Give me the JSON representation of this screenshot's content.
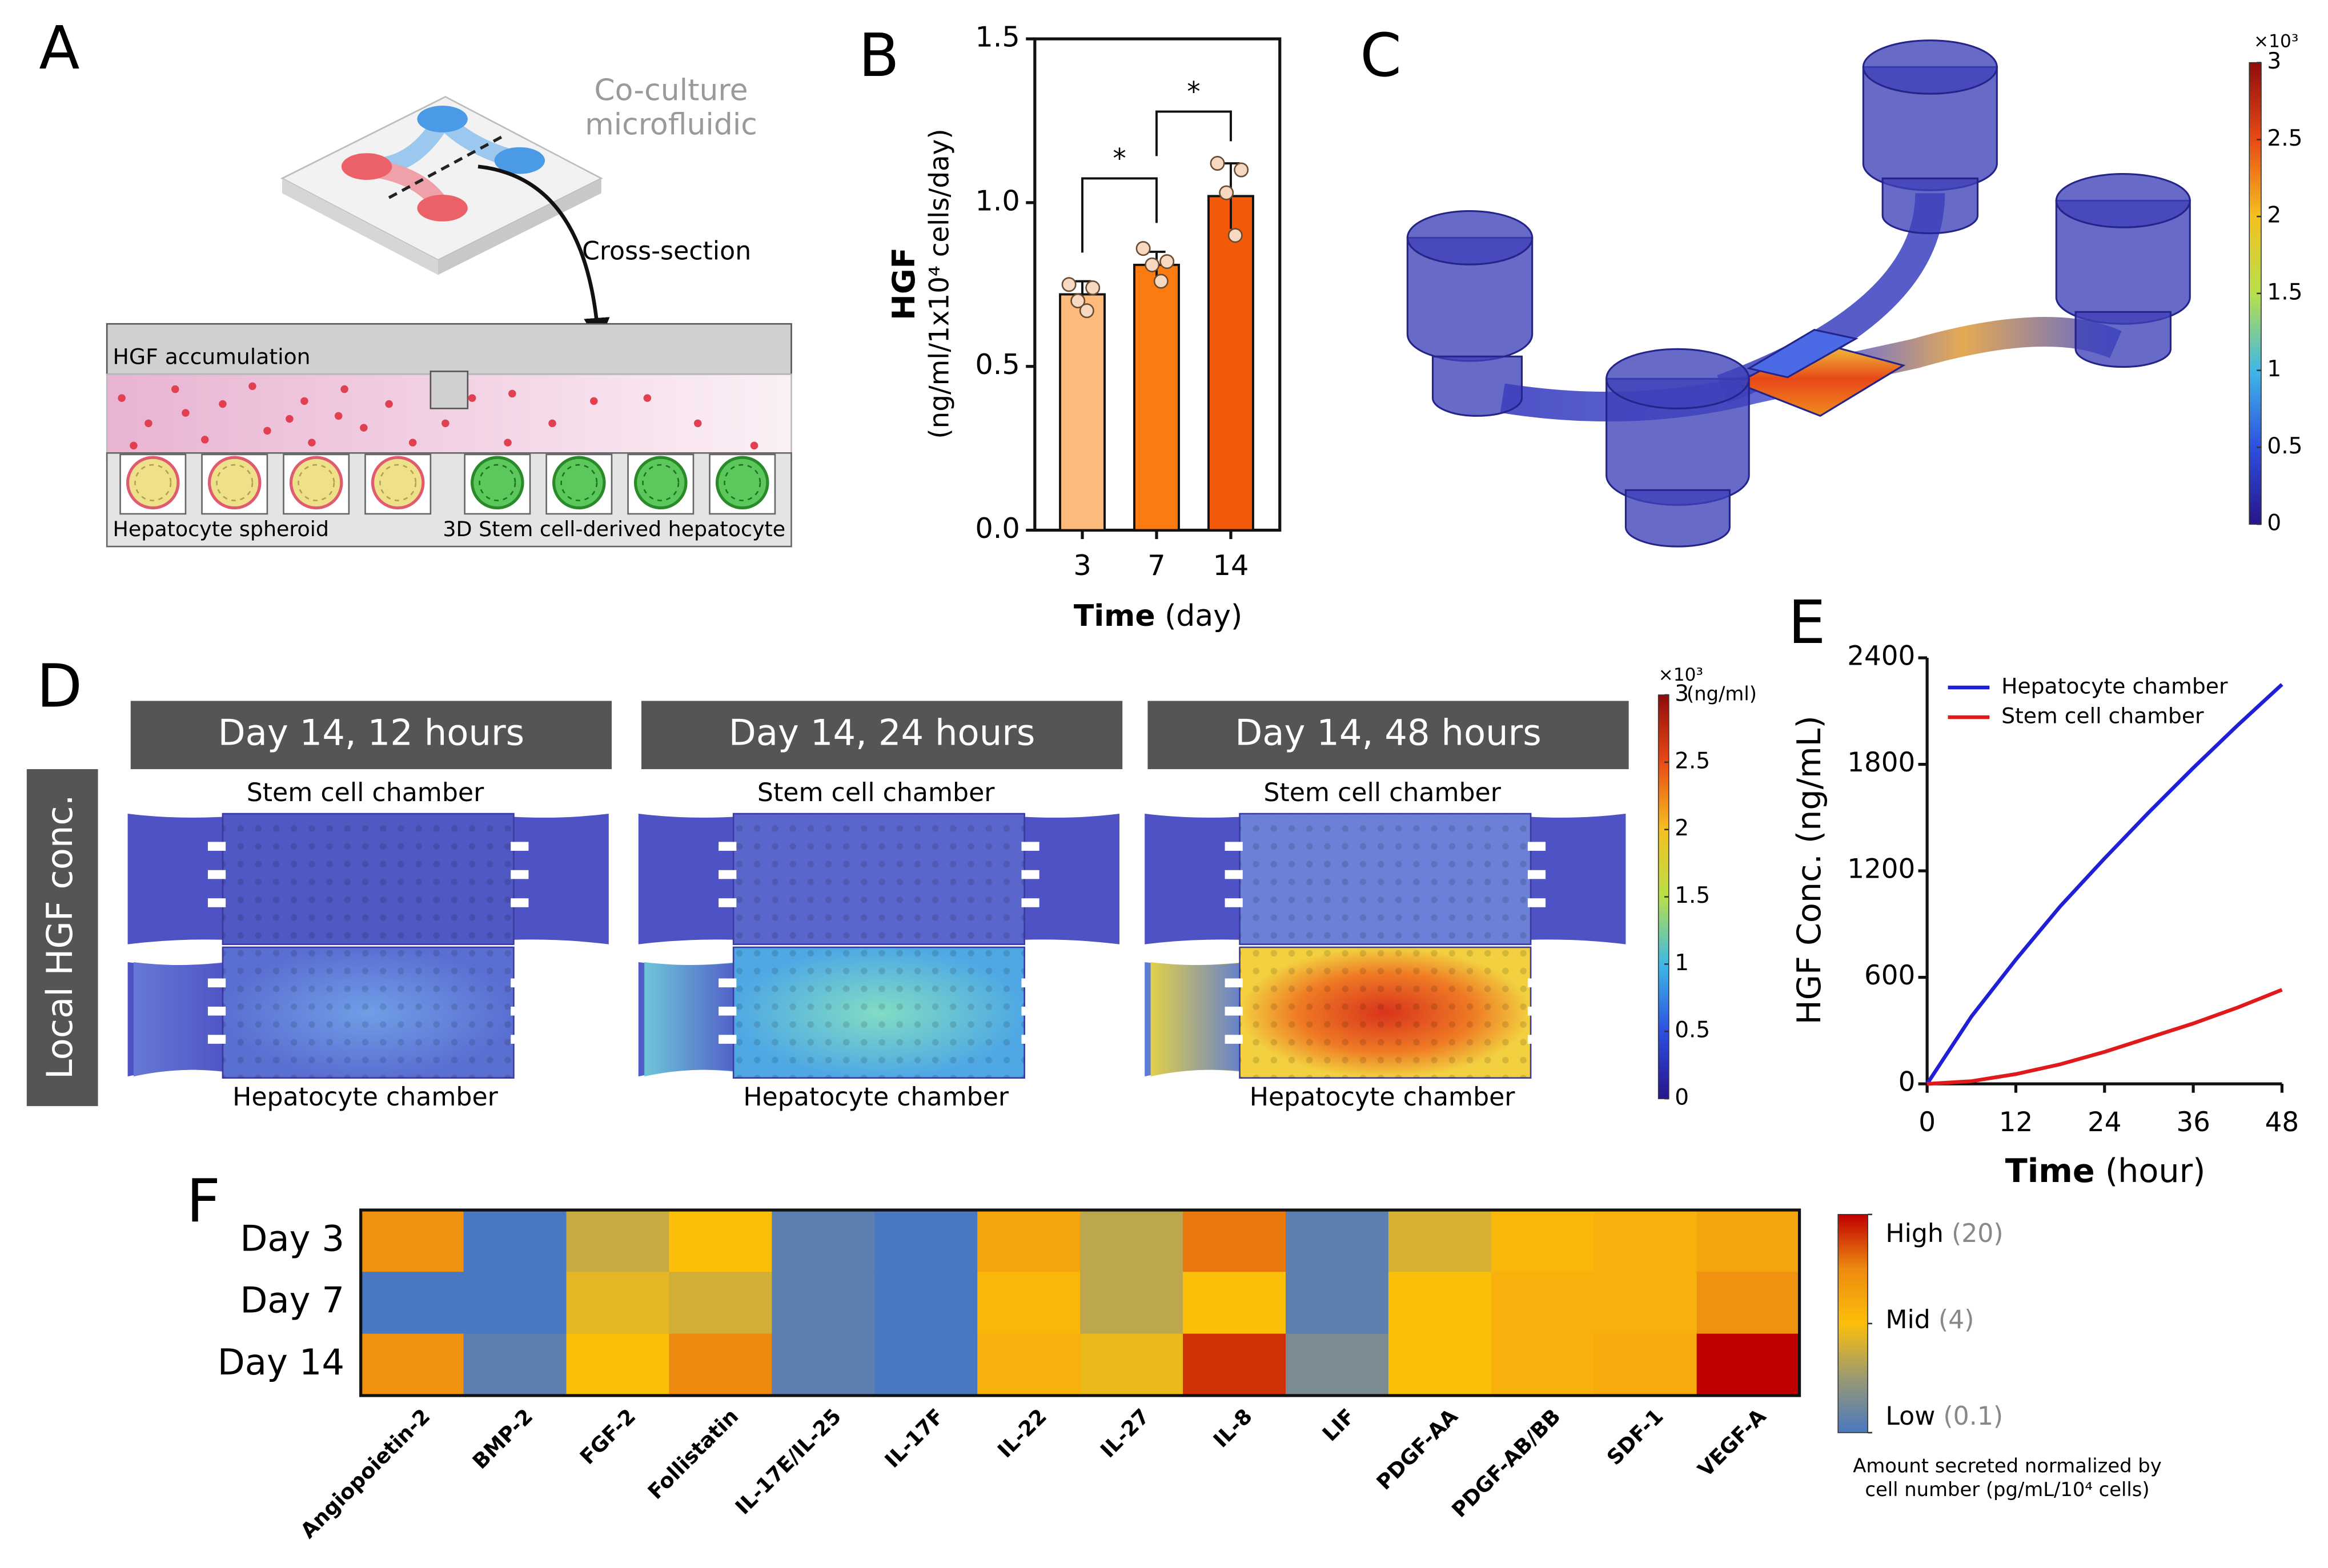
{
  "panel_labels": [
    "A",
    "B",
    "C",
    "D",
    "E",
    "F"
  ],
  "panel_a": {
    "chip_label": [
      "Co-culture",
      "microfluidic"
    ],
    "arrow_label": "Cross-section",
    "top_label": "HGF accumulation",
    "left_label": "Hepatocyte spheroid",
    "right_label": "3D Stem cell-derived hepatocyte"
  },
  "panel_c": {
    "colorbar": {
      "multiplier": "×10³",
      "lim": [
        0,
        3
      ],
      "ticks": [
        0,
        0.5,
        1,
        1.5,
        2,
        2.5,
        3
      ],
      "colors": [
        "#27158a",
        "#2d4fe0",
        "#3fb8e6",
        "#b8e04a",
        "#f5c020",
        "#e84a15",
        "#8f0c0c"
      ]
    }
  },
  "panel_d": {
    "side_label": "Local HGF conc.",
    "titles": [
      "Day 14, 12 hours",
      "Day 14, 24 hours",
      "Day 14, 48 hours"
    ],
    "chamber_labels": [
      [
        "Stem cell chamber",
        "Hepatocyte chamber"
      ],
      [
        "Stem cell chamber",
        "Hepatocyte chamber"
      ],
      [
        "Stem cell chamber",
        "Hepatocyte chamber"
      ]
    ],
    "colorbar": {
      "multiplier": "×10³",
      "unit": "(ng/ml)",
      "lim": [
        0,
        3
      ],
      "ticks": [
        0,
        0.5,
        1,
        1.5,
        2,
        2.5,
        3
      ],
      "colors": [
        "#27158a",
        "#2d4fe0",
        "#3fb8e6",
        "#b8e04a",
        "#f5c020",
        "#e84a15",
        "#8f0c0c"
      ]
    }
  },
  "chart_data": [
    {
      "type": "bar",
      "y_label": "HGF",
      "y_unit": "(ng/ml/1x10⁴ cells/day)",
      "x_label": "Time",
      "x_unit": "(day)",
      "categories": [
        "3",
        "7",
        "14"
      ],
      "values": [
        0.72,
        0.81,
        1.02
      ],
      "errors": [
        0.04,
        0.04,
        0.1
      ],
      "points": [
        [
          0.75,
          0.74,
          0.7,
          0.67
        ],
        [
          0.86,
          0.82,
          0.81,
          0.76
        ],
        [
          1.12,
          1.1,
          1.03,
          0.9
        ]
      ],
      "colors": [
        "#fdba7a",
        "#fb7b10",
        "#f25a0a"
      ],
      "ylim": [
        0,
        1.5
      ],
      "yticks": [
        {
          "value": 0,
          "label": "0.0"
        },
        0.5,
        {
          "value": 1,
          "label": "1.0"
        },
        1.5
      ],
      "annotations": [
        "*",
        "*"
      ]
    },
    {
      "type": "line",
      "y_label": "HGF Conc. (ng/mL)",
      "x_label": "Time",
      "x_unit": "(hour)",
      "x": [
        0,
        6,
        12,
        18,
        24,
        30,
        36,
        42,
        48
      ],
      "series": [
        {
          "name": "Hepatocyte chamber",
          "color": "#1f1fd6",
          "values": [
            0,
            380,
            700,
            1000,
            1270,
            1530,
            1780,
            2020,
            2250
          ]
        },
        {
          "name": "Stem cell chamber",
          "color": "#e01a1a",
          "values": [
            0,
            15,
            55,
            110,
            180,
            260,
            340,
            430,
            530
          ]
        }
      ],
      "xlim": [
        0,
        48
      ],
      "xticks": [
        0,
        12,
        24,
        36,
        48
      ],
      "ylim": [
        0,
        2400
      ],
      "yticks": [
        0,
        600,
        1200,
        1800,
        2400
      ],
      "legend": "upper-left"
    },
    {
      "type": "heatmap",
      "log_scale": true,
      "categories": [
        "Angiopoietin-2",
        "BMP-2",
        "FGF-2",
        "Follistatin",
        "IL-17E/IL-25",
        "IL-17F",
        "IL-22",
        "IL-27",
        "IL-8",
        "LIF",
        "PDGF-AA",
        "PDGF-AB/BB",
        "SDF-1",
        "VEGF-A"
      ],
      "rows": [
        "Day 3",
        "Day 7",
        "Day 14"
      ],
      "values": [
        [
          8,
          0.1,
          1.5,
          4,
          0.15,
          0.1,
          6,
          1.2,
          10,
          0.15,
          2,
          4.5,
          5,
          6
        ],
        [
          0.1,
          0.1,
          2.5,
          1.8,
          0.15,
          0.1,
          4.5,
          1.2,
          4,
          0.15,
          4,
          5,
          5,
          8
        ],
        [
          8,
          0.15,
          4,
          9,
          0.15,
          0.1,
          5,
          3,
          15,
          0.3,
          4,
          5,
          5.5,
          20
        ]
      ],
      "colorbar": {
        "ticks": [
          {
            "name": "High",
            "value": 20,
            "label": "(20)"
          },
          {
            "name": "Mid",
            "value": 4,
            "label": "(4)"
          },
          {
            "name": "Low",
            "value": 0.1,
            "label": "(0.1)"
          }
        ],
        "colors": [
          "#4a78c0",
          "#9a9a72",
          "#fbbf0a",
          "#ee8a10",
          "#c00000"
        ],
        "label": [
          "Amount secreted normalized by",
          "cell number (pg/mL/10⁴ cells)"
        ]
      }
    }
  ]
}
